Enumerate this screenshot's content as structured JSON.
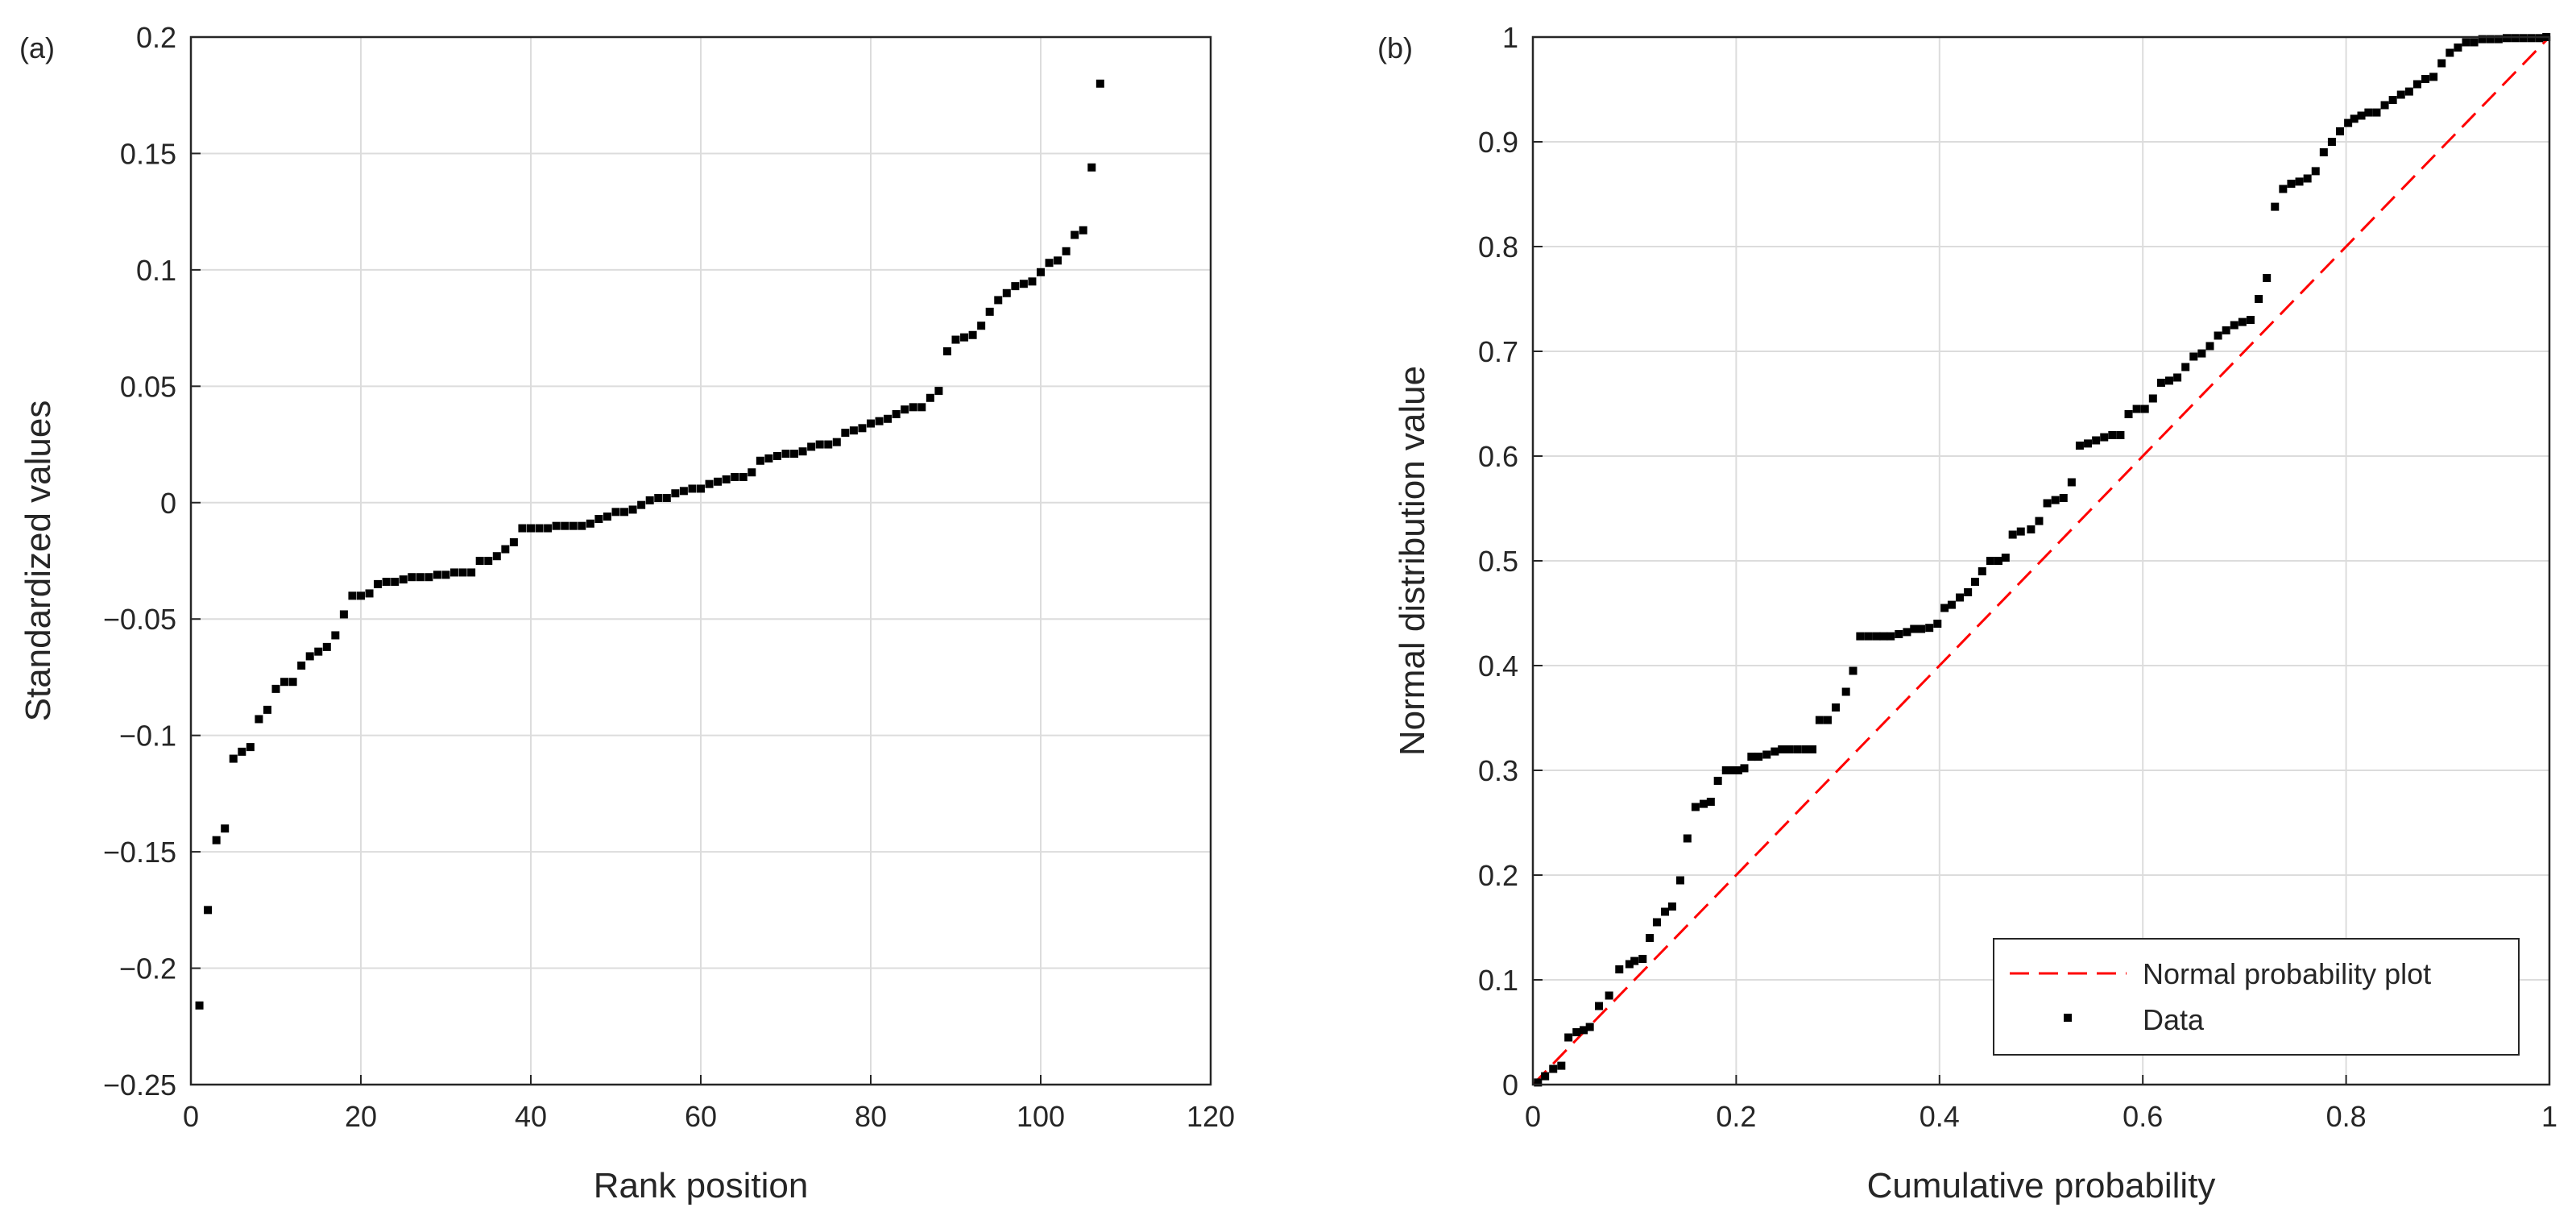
{
  "chart_data": [
    {
      "type": "scatter",
      "panel_label": "(a)",
      "xlabel": "Rank position",
      "ylabel": "Standardized values",
      "xlim": [
        0,
        120
      ],
      "ylim": [
        -0.25,
        0.2
      ],
      "xticks": [
        0,
        20,
        40,
        60,
        80,
        100,
        120
      ],
      "yticks": [
        -0.25,
        -0.2,
        -0.15,
        -0.1,
        -0.05,
        0,
        0.05,
        0.1,
        0.15,
        0.2
      ],
      "xtick_labels": [
        "0",
        "20",
        "40",
        "60",
        "80",
        "100",
        "120"
      ],
      "ytick_labels": [
        "−0.25",
        "−0.2",
        "−0.15",
        "−0.1",
        "−0.05",
        "0",
        "0.05",
        "0.1",
        "0.15",
        "0.2"
      ],
      "grid": true,
      "series": [
        {
          "color": "#000000",
          "x": [
            1,
            2,
            3,
            4,
            5,
            6,
            7,
            8,
            9,
            10,
            11,
            12,
            13,
            14,
            15,
            16,
            17,
            18,
            19,
            20,
            21,
            22,
            23,
            24,
            25,
            26,
            27,
            28,
            29,
            30,
            31,
            32,
            33,
            34,
            35,
            36,
            37,
            38,
            39,
            40,
            41,
            42,
            43,
            44,
            45,
            46,
            47,
            48,
            49,
            50,
            51,
            52,
            53,
            54,
            55,
            56,
            57,
            58,
            59,
            60,
            61,
            62,
            63,
            64,
            65,
            66,
            67,
            68,
            69,
            70,
            71,
            72,
            73,
            74,
            75,
            76,
            77,
            78,
            79,
            80,
            81,
            82,
            83,
            84,
            85,
            86,
            87,
            88,
            89,
            90,
            91,
            92,
            93,
            94,
            95,
            96,
            97,
            98,
            99,
            100,
            101,
            102,
            103,
            104,
            105,
            106,
            107
          ],
          "y": [
            -0.216,
            -0.175,
            -0.145,
            -0.14,
            -0.11,
            -0.107,
            -0.105,
            -0.093,
            -0.089,
            -0.08,
            -0.077,
            -0.077,
            -0.07,
            -0.066,
            -0.064,
            -0.062,
            -0.057,
            -0.048,
            -0.04,
            -0.04,
            -0.039,
            -0.035,
            -0.034,
            -0.034,
            -0.033,
            -0.032,
            -0.032,
            -0.032,
            -0.031,
            -0.031,
            -0.03,
            -0.03,
            -0.03,
            -0.025,
            -0.025,
            -0.023,
            -0.02,
            -0.017,
            -0.011,
            -0.011,
            -0.011,
            -0.011,
            -0.01,
            -0.01,
            -0.01,
            -0.01,
            -0.009,
            -0.007,
            -0.006,
            -0.004,
            -0.004,
            -0.003,
            -0.001,
            0.001,
            0.002,
            0.002,
            0.004,
            0.005,
            0.006,
            0.006,
            0.008,
            0.009,
            0.01,
            0.011,
            0.011,
            0.013,
            0.018,
            0.019,
            0.02,
            0.021,
            0.021,
            0.022,
            0.024,
            0.025,
            0.025,
            0.026,
            0.03,
            0.031,
            0.032,
            0.034,
            0.035,
            0.036,
            0.038,
            0.04,
            0.041,
            0.041,
            0.045,
            0.048,
            0.065,
            0.07,
            0.071,
            0.072,
            0.076,
            0.082,
            0.087,
            0.09,
            0.093,
            0.094,
            0.095,
            0.099,
            0.103,
            0.104,
            0.108,
            0.115,
            0.117,
            0.144,
            0.18
          ]
        }
      ]
    },
    {
      "type": "scatter",
      "panel_label": "(b)",
      "xlabel": "Cumulative probability",
      "ylabel": "Normal distribution value",
      "xlim": [
        0,
        1
      ],
      "ylim": [
        0,
        1
      ],
      "xticks": [
        0,
        0.2,
        0.4,
        0.6,
        0.8,
        1
      ],
      "yticks": [
        0,
        0.1,
        0.2,
        0.3,
        0.4,
        0.5,
        0.6,
        0.7,
        0.8,
        0.9,
        1
      ],
      "xtick_labels": [
        "0",
        "0.2",
        "0.4",
        "0.6",
        "0.8",
        "1"
      ],
      "ytick_labels": [
        "0",
        "0.1",
        "0.2",
        "0.3",
        "0.4",
        "0.5",
        "0.6",
        "0.7",
        "0.8",
        "0.9",
        "1"
      ],
      "grid": true,
      "legend_position": "bottom-right",
      "series": [
        {
          "name": "Normal probability plot",
          "style": "dashed-line",
          "color": "#ff0000",
          "x": [
            0,
            1
          ],
          "y": [
            0,
            1
          ]
        },
        {
          "name": "Data",
          "style": "points",
          "color": "#000000",
          "x": [
            0.005,
            0.012,
            0.02,
            0.028,
            0.035,
            0.043,
            0.05,
            0.056,
            0.065,
            0.075,
            0.085,
            0.095,
            0.1,
            0.108,
            0.115,
            0.122,
            0.13,
            0.137,
            0.145,
            0.152,
            0.16,
            0.168,
            0.175,
            0.182,
            0.19,
            0.196,
            0.202,
            0.208,
            0.215,
            0.222,
            0.23,
            0.238,
            0.245,
            0.252,
            0.26,
            0.268,
            0.275,
            0.282,
            0.29,
            0.298,
            0.308,
            0.315,
            0.322,
            0.33,
            0.338,
            0.345,
            0.352,
            0.36,
            0.368,
            0.375,
            0.382,
            0.39,
            0.398,
            0.405,
            0.412,
            0.42,
            0.428,
            0.435,
            0.442,
            0.45,
            0.458,
            0.465,
            0.472,
            0.48,
            0.49,
            0.498,
            0.506,
            0.514,
            0.522,
            0.53,
            0.538,
            0.546,
            0.554,
            0.562,
            0.57,
            0.578,
            0.586,
            0.594,
            0.602,
            0.61,
            0.618,
            0.626,
            0.634,
            0.642,
            0.65,
            0.658,
            0.666,
            0.674,
            0.682,
            0.69,
            0.698,
            0.706,
            0.714,
            0.722,
            0.73,
            0.738,
            0.746,
            0.754,
            0.762,
            0.77,
            0.778,
            0.786,
            0.794,
            0.802,
            0.808,
            0.815,
            0.822,
            0.83,
            0.838,
            0.846,
            0.854,
            0.862,
            0.87,
            0.878,
            0.886,
            0.894,
            0.902,
            0.91,
            0.918,
            0.926,
            0.934,
            0.942,
            0.95,
            0.958,
            0.966,
            0.974,
            0.982,
            0.99,
            0.997
          ],
          "y": [
            0.002,
            0.008,
            0.015,
            0.018,
            0.045,
            0.05,
            0.052,
            0.055,
            0.075,
            0.085,
            0.11,
            0.115,
            0.118,
            0.12,
            0.14,
            0.155,
            0.165,
            0.17,
            0.195,
            0.235,
            0.265,
            0.268,
            0.27,
            0.29,
            0.3,
            0.3,
            0.3,
            0.302,
            0.313,
            0.313,
            0.315,
            0.318,
            0.32,
            0.32,
            0.32,
            0.32,
            0.32,
            0.348,
            0.348,
            0.36,
            0.375,
            0.395,
            0.428,
            0.428,
            0.428,
            0.428,
            0.428,
            0.43,
            0.432,
            0.435,
            0.435,
            0.436,
            0.44,
            0.455,
            0.458,
            0.465,
            0.47,
            0.48,
            0.49,
            0.5,
            0.5,
            0.503,
            0.525,
            0.528,
            0.53,
            0.538,
            0.555,
            0.558,
            0.56,
            0.575,
            0.61,
            0.612,
            0.615,
            0.618,
            0.62,
            0.62,
            0.64,
            0.645,
            0.645,
            0.655,
            0.67,
            0.672,
            0.675,
            0.685,
            0.695,
            0.698,
            0.705,
            0.715,
            0.72,
            0.725,
            0.728,
            0.73,
            0.75,
            0.77,
            0.838,
            0.855,
            0.86,
            0.862,
            0.865,
            0.872,
            0.89,
            0.9,
            0.91,
            0.918,
            0.922,
            0.925,
            0.928,
            0.928,
            0.935,
            0.94,
            0.945,
            0.948,
            0.955,
            0.96,
            0.962,
            0.975,
            0.985,
            0.99,
            0.995,
            0.995,
            0.998,
            0.998,
            0.998,
            0.999,
            0.999,
            0.999,
            0.999,
            0.999,
            1.0
          ]
        }
      ]
    }
  ]
}
